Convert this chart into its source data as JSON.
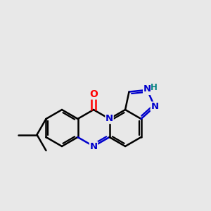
{
  "bg": "#e8e8e8",
  "bc": "#000000",
  "nc": "#0000cc",
  "oc": "#ff0000",
  "hc": "#008080",
  "lw": 1.8,
  "lw_thin": 1.5,
  "off": 2.8,
  "shrink": 0.13
}
